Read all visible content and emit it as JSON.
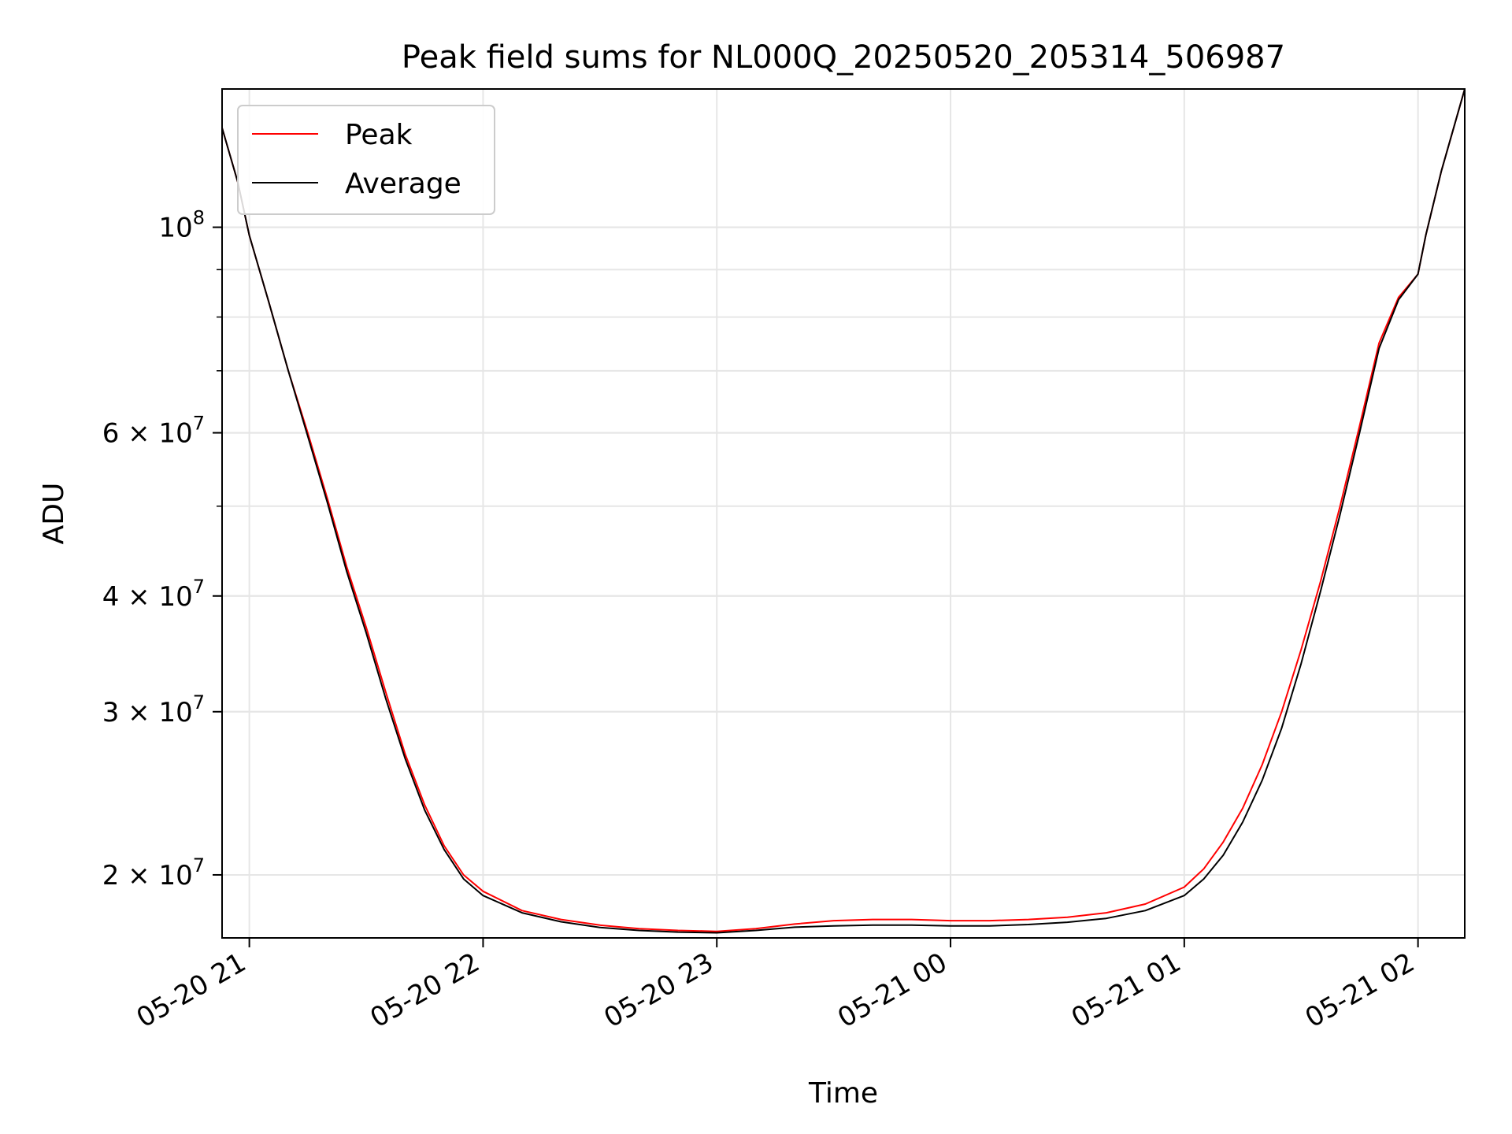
{
  "chart_data": {
    "type": "line",
    "title": "Peak field sums for NL000Q_20250520_205314_506987",
    "xlabel": "Time",
    "ylabel": "ADU",
    "yscale": "log",
    "grid": true,
    "legend_placement": "top-left",
    "xlim": [
      "2025-05-20 20:53",
      "2025-05-21 02:12"
    ],
    "ylim": [
      17100000,
      141000000
    ],
    "x_ticks": [
      {
        "value": "2025-05-20 21:00",
        "label": "05-20 21"
      },
      {
        "value": "2025-05-20 22:00",
        "label": "05-20 22"
      },
      {
        "value": "2025-05-20 23:00",
        "label": "05-20 23"
      },
      {
        "value": "2025-05-21 00:00",
        "label": "05-21 00"
      },
      {
        "value": "2025-05-21 01:00",
        "label": "05-21 01"
      },
      {
        "value": "2025-05-21 02:00",
        "label": "05-21 02"
      }
    ],
    "y_ticks": [
      {
        "value": 20000000,
        "base": "2 × 10",
        "exp": "7"
      },
      {
        "value": 30000000,
        "base": "3 × 10",
        "exp": "7"
      },
      {
        "value": 40000000,
        "base": "4 × 10",
        "exp": "7"
      },
      {
        "value": 60000000,
        "base": "6 × 10",
        "exp": "7"
      },
      {
        "value": 100000000,
        "base": "10",
        "exp": "8"
      }
    ],
    "series": [
      {
        "name": "Peak",
        "color": "#ff0000",
        "points": [
          [
            "2025-05-20 20:53",
            128000000
          ],
          [
            "2025-05-20 20:57",
            112000000
          ],
          [
            "2025-05-20 21:00",
            98000000
          ],
          [
            "2025-05-20 21:05",
            83000000
          ],
          [
            "2025-05-20 21:10",
            70000000
          ],
          [
            "2025-05-20 21:15",
            60000000
          ],
          [
            "2025-05-20 21:20",
            51000000
          ],
          [
            "2025-05-20 21:25",
            43000000
          ],
          [
            "2025-05-20 21:30",
            37000000
          ],
          [
            "2025-05-20 21:35",
            31500000
          ],
          [
            "2025-05-20 21:40",
            27000000
          ],
          [
            "2025-05-20 21:45",
            23800000
          ],
          [
            "2025-05-20 21:50",
            21500000
          ],
          [
            "2025-05-20 21:55",
            20000000
          ],
          [
            "2025-05-20 22:00",
            19200000
          ],
          [
            "2025-05-20 22:10",
            18300000
          ],
          [
            "2025-05-20 22:20",
            17900000
          ],
          [
            "2025-05-20 22:30",
            17650000
          ],
          [
            "2025-05-20 22:40",
            17500000
          ],
          [
            "2025-05-20 22:50",
            17420000
          ],
          [
            "2025-05-20 23:00",
            17380000
          ],
          [
            "2025-05-20 23:10",
            17500000
          ],
          [
            "2025-05-20 23:20",
            17700000
          ],
          [
            "2025-05-20 23:30",
            17850000
          ],
          [
            "2025-05-20 23:40",
            17900000
          ],
          [
            "2025-05-20 23:50",
            17900000
          ],
          [
            "2025-05-21 00:00",
            17850000
          ],
          [
            "2025-05-21 00:10",
            17850000
          ],
          [
            "2025-05-21 00:20",
            17900000
          ],
          [
            "2025-05-21 00:30",
            18000000
          ],
          [
            "2025-05-21 00:40",
            18200000
          ],
          [
            "2025-05-21 00:50",
            18600000
          ],
          [
            "2025-05-21 01:00",
            19400000
          ],
          [
            "2025-05-21 01:05",
            20300000
          ],
          [
            "2025-05-21 01:10",
            21700000
          ],
          [
            "2025-05-21 01:15",
            23600000
          ],
          [
            "2025-05-21 01:20",
            26300000
          ],
          [
            "2025-05-21 01:25",
            30000000
          ],
          [
            "2025-05-21 01:30",
            35000000
          ],
          [
            "2025-05-21 01:35",
            41500000
          ],
          [
            "2025-05-21 01:40",
            50000000
          ],
          [
            "2025-05-21 01:45",
            61000000
          ],
          [
            "2025-05-21 01:50",
            75000000
          ],
          [
            "2025-05-21 01:55",
            84000000
          ],
          [
            "2025-05-21 02:00",
            89000000
          ],
          [
            "2025-05-21 02:02",
            98000000
          ],
          [
            "2025-05-21 02:06",
            115000000
          ],
          [
            "2025-05-21 02:12",
            141000000
          ]
        ]
      },
      {
        "name": "Average",
        "color": "#000000",
        "points": [
          [
            "2025-05-20 20:53",
            128000000
          ],
          [
            "2025-05-20 20:57",
            112000000
          ],
          [
            "2025-05-20 21:00",
            98000000
          ],
          [
            "2025-05-20 21:05",
            83000000
          ],
          [
            "2025-05-20 21:10",
            70000000
          ],
          [
            "2025-05-20 21:15",
            59500000
          ],
          [
            "2025-05-20 21:20",
            50500000
          ],
          [
            "2025-05-20 21:25",
            42500000
          ],
          [
            "2025-05-20 21:30",
            36500000
          ],
          [
            "2025-05-20 21:35",
            31000000
          ],
          [
            "2025-05-20 21:40",
            26700000
          ],
          [
            "2025-05-20 21:45",
            23500000
          ],
          [
            "2025-05-20 21:50",
            21300000
          ],
          [
            "2025-05-20 21:55",
            19800000
          ],
          [
            "2025-05-20 22:00",
            19000000
          ],
          [
            "2025-05-20 22:10",
            18200000
          ],
          [
            "2025-05-20 22:20",
            17800000
          ],
          [
            "2025-05-20 22:30",
            17550000
          ],
          [
            "2025-05-20 22:40",
            17420000
          ],
          [
            "2025-05-20 22:50",
            17350000
          ],
          [
            "2025-05-20 23:00",
            17320000
          ],
          [
            "2025-05-20 23:10",
            17420000
          ],
          [
            "2025-05-20 23:20",
            17560000
          ],
          [
            "2025-05-20 23:30",
            17620000
          ],
          [
            "2025-05-20 23:40",
            17650000
          ],
          [
            "2025-05-20 23:50",
            17650000
          ],
          [
            "2025-05-21 00:00",
            17620000
          ],
          [
            "2025-05-21 00:10",
            17620000
          ],
          [
            "2025-05-21 00:20",
            17680000
          ],
          [
            "2025-05-21 00:30",
            17780000
          ],
          [
            "2025-05-21 00:40",
            17950000
          ],
          [
            "2025-05-21 00:50",
            18300000
          ],
          [
            "2025-05-21 01:00",
            19000000
          ],
          [
            "2025-05-21 01:05",
            19800000
          ],
          [
            "2025-05-21 01:10",
            21000000
          ],
          [
            "2025-05-21 01:15",
            22800000
          ],
          [
            "2025-05-21 01:20",
            25300000
          ],
          [
            "2025-05-21 01:25",
            28800000
          ],
          [
            "2025-05-21 01:30",
            33800000
          ],
          [
            "2025-05-21 01:35",
            40500000
          ],
          [
            "2025-05-21 01:40",
            49000000
          ],
          [
            "2025-05-21 01:45",
            60000000
          ],
          [
            "2025-05-21 01:50",
            74000000
          ],
          [
            "2025-05-21 01:55",
            83500000
          ],
          [
            "2025-05-21 02:00",
            89000000
          ],
          [
            "2025-05-21 02:02",
            98000000
          ],
          [
            "2025-05-21 02:06",
            115000000
          ],
          [
            "2025-05-21 02:12",
            141000000
          ]
        ]
      }
    ]
  }
}
